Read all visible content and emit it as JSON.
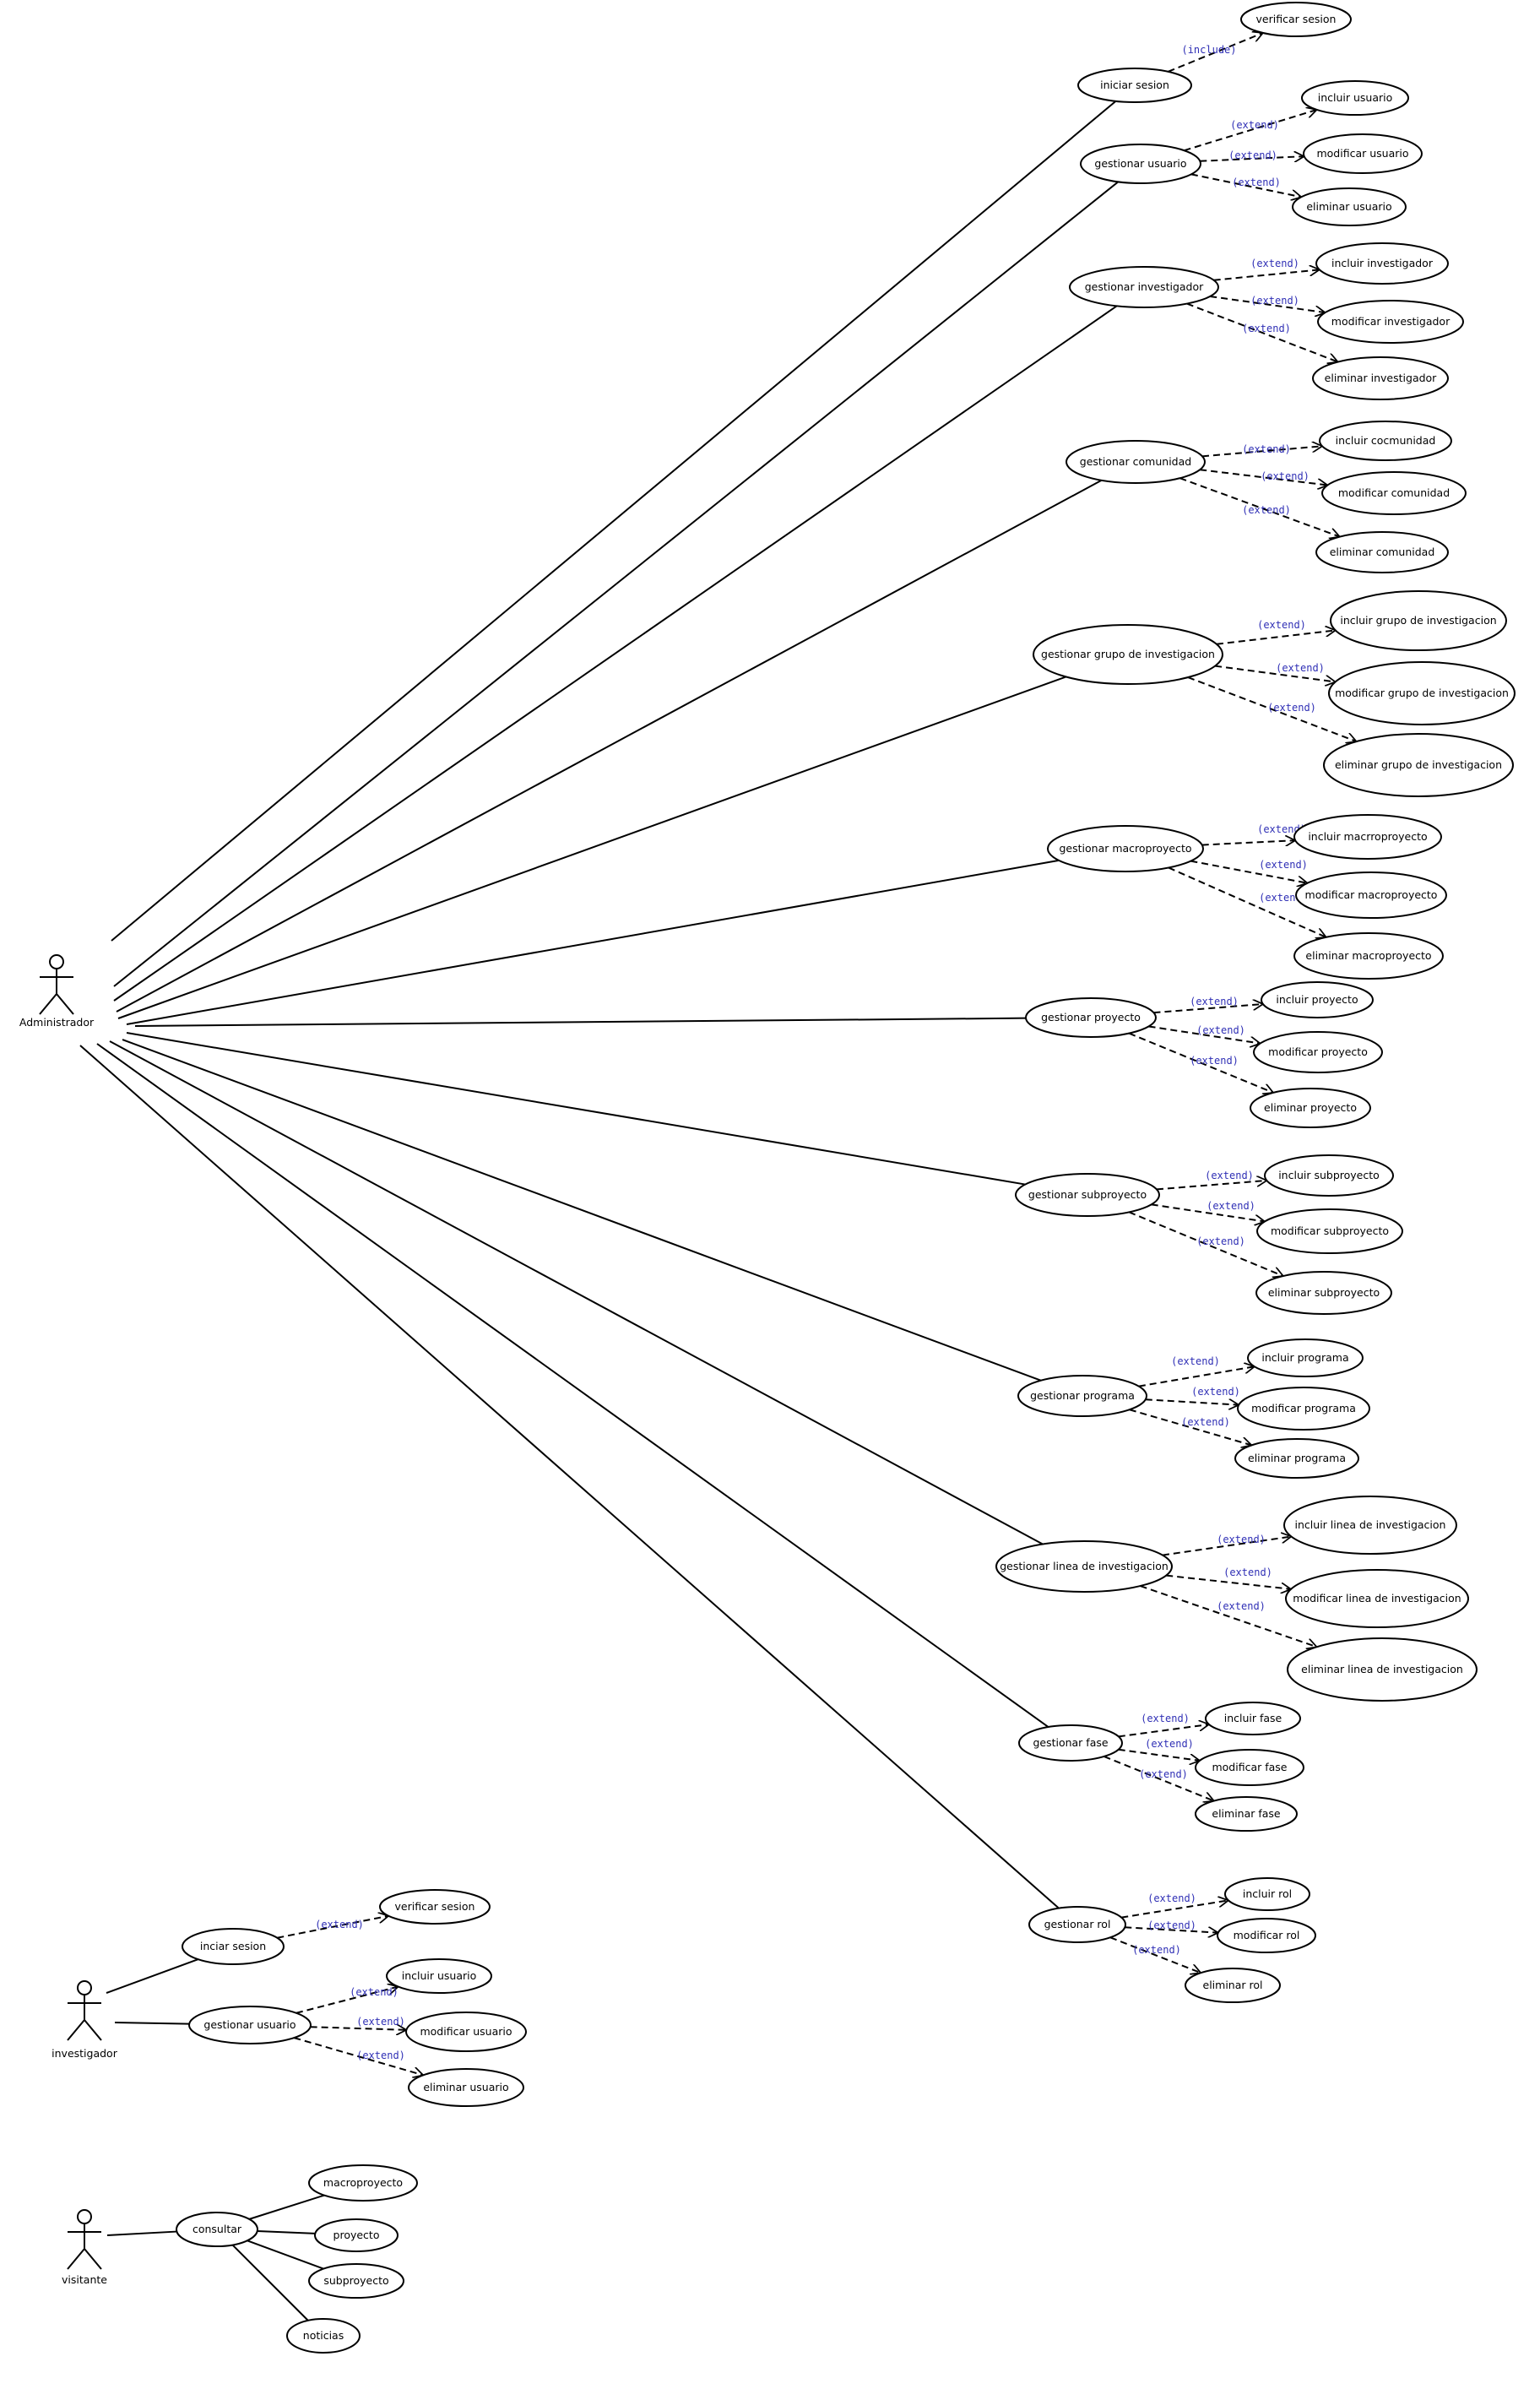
{
  "diagram": {
    "actors": [
      {
        "id": "administrador",
        "label": "Administrador"
      },
      {
        "id": "investigador",
        "label": "investigador"
      },
      {
        "id": "visitante",
        "label": "visitante"
      }
    ],
    "use_cases": [
      {
        "id": "iniciar_sesion",
        "label": "iniciar sesion"
      },
      {
        "id": "verificar_sesion",
        "label": "verificar sesion"
      },
      {
        "id": "gestionar_usuario",
        "label": "gestionar usuario"
      },
      {
        "id": "incluir_usuario",
        "label": "incluir usuario"
      },
      {
        "id": "modificar_usuario",
        "label": "modificar usuario"
      },
      {
        "id": "eliminar_usuario",
        "label": "eliminar usuario"
      },
      {
        "id": "gestionar_investigador",
        "label": "gestionar investigador"
      },
      {
        "id": "incluir_investigador",
        "label": "incluir investigador"
      },
      {
        "id": "modificar_investigador",
        "label": "modificar investigador"
      },
      {
        "id": "eliminar_investigador",
        "label": "eliminar investigador"
      },
      {
        "id": "gestionar_comunidad",
        "label": "gestionar comunidad"
      },
      {
        "id": "incluir_comunidad",
        "label": "incluir cocmunidad"
      },
      {
        "id": "modificar_comunidad",
        "label": "modificar comunidad"
      },
      {
        "id": "eliminar_comunidad",
        "label": "eliminar comunidad"
      },
      {
        "id": "gestionar_grupo",
        "label": "gestionar grupo de investigacion"
      },
      {
        "id": "incluir_grupo",
        "label": "incluir grupo de investigacion"
      },
      {
        "id": "modificar_grupo",
        "label": "modificar grupo de investigacion"
      },
      {
        "id": "eliminar_grupo",
        "label": "eliminar grupo de investigacion"
      },
      {
        "id": "gestionar_macroproyecto",
        "label": "gestionar macroproyecto"
      },
      {
        "id": "incluir_macroproyecto",
        "label": "incluir macrroproyecto"
      },
      {
        "id": "modificar_macroproyecto",
        "label": "modificar macroproyecto"
      },
      {
        "id": "eliminar_macroproyecto",
        "label": "eliminar macroproyecto"
      },
      {
        "id": "gestionar_proyecto",
        "label": "gestionar proyecto"
      },
      {
        "id": "incluir_proyecto",
        "label": "incluir proyecto"
      },
      {
        "id": "modificar_proyecto",
        "label": "modificar proyecto"
      },
      {
        "id": "eliminar_proyecto",
        "label": "eliminar proyecto"
      },
      {
        "id": "gestionar_subproyecto",
        "label": "gestionar subproyecto"
      },
      {
        "id": "incluir_subproyecto",
        "label": "incluir subproyecto"
      },
      {
        "id": "modificar_subproyecto",
        "label": "modificar subproyecto"
      },
      {
        "id": "eliminar_subproyecto",
        "label": "eliminar subproyecto"
      },
      {
        "id": "gestionar_programa",
        "label": "gestionar programa"
      },
      {
        "id": "incluir_programa",
        "label": "incluir programa"
      },
      {
        "id": "modificar_programa",
        "label": "modificar programa"
      },
      {
        "id": "eliminar_programa",
        "label": "eliminar programa"
      },
      {
        "id": "gestionar_linea",
        "label": "gestionar linea de investigacion"
      },
      {
        "id": "incluir_linea",
        "label": "incluir linea de investigacion"
      },
      {
        "id": "modificar_linea",
        "label": "modificar linea de investigacion"
      },
      {
        "id": "eliminar_linea",
        "label": "eliminar linea de investigacion"
      },
      {
        "id": "gestionar_fase",
        "label": "gestionar fase"
      },
      {
        "id": "incluir_fase",
        "label": "incluir fase"
      },
      {
        "id": "modificar_fase",
        "label": "modificar fase"
      },
      {
        "id": "eliminar_fase",
        "label": "eliminar fase"
      },
      {
        "id": "gestionar_rol",
        "label": "gestionar rol"
      },
      {
        "id": "incluir_rol",
        "label": "incluir rol"
      },
      {
        "id": "modificar_rol",
        "label": "modificar rol"
      },
      {
        "id": "eliminar_rol",
        "label": "eliminar rol"
      },
      {
        "id": "inv_inciar_sesion",
        "label": "inciar sesion"
      },
      {
        "id": "inv_verificar_sesion",
        "label": "verificar sesion"
      },
      {
        "id": "inv_gestionar_usuario",
        "label": "gestionar usuario"
      },
      {
        "id": "inv_incluir_usuario",
        "label": "incluir usuario"
      },
      {
        "id": "inv_modificar_usuario",
        "label": "modificar usuario"
      },
      {
        "id": "inv_eliminar_usuario",
        "label": "eliminar usuario"
      },
      {
        "id": "consultar",
        "label": "consultar"
      },
      {
        "id": "c_macroproyecto",
        "label": "macroproyecto"
      },
      {
        "id": "c_proyecto",
        "label": "proyecto"
      },
      {
        "id": "c_subproyecto",
        "label": "subproyecto"
      },
      {
        "id": "c_noticias",
        "label": "noticias"
      }
    ],
    "associations": [
      [
        "administrador",
        "iniciar_sesion"
      ],
      [
        "administrador",
        "gestionar_usuario"
      ],
      [
        "administrador",
        "gestionar_investigador"
      ],
      [
        "administrador",
        "gestionar_comunidad"
      ],
      [
        "administrador",
        "gestionar_grupo"
      ],
      [
        "administrador",
        "gestionar_macroproyecto"
      ],
      [
        "administrador",
        "gestionar_proyecto"
      ],
      [
        "administrador",
        "gestionar_subproyecto"
      ],
      [
        "administrador",
        "gestionar_programa"
      ],
      [
        "administrador",
        "gestionar_linea"
      ],
      [
        "administrador",
        "gestionar_fase"
      ],
      [
        "administrador",
        "gestionar_rol"
      ],
      [
        "investigador",
        "inv_inciar_sesion"
      ],
      [
        "investigador",
        "inv_gestionar_usuario"
      ],
      [
        "visitante",
        "consultar"
      ],
      [
        "consultar",
        "c_macroproyecto"
      ],
      [
        "consultar",
        "c_proyecto"
      ],
      [
        "consultar",
        "c_subproyecto"
      ],
      [
        "consultar",
        "c_noticias"
      ]
    ],
    "dependencies": [
      {
        "from": "iniciar_sesion",
        "to": "verificar_sesion",
        "label": "(include)"
      },
      {
        "from": "gestionar_usuario",
        "to": "incluir_usuario",
        "label": "(extend)"
      },
      {
        "from": "gestionar_usuario",
        "to": "modificar_usuario",
        "label": "(extend)"
      },
      {
        "from": "gestionar_usuario",
        "to": "eliminar_usuario",
        "label": "(extend)"
      },
      {
        "from": "gestionar_investigador",
        "to": "incluir_investigador",
        "label": "(extend)"
      },
      {
        "from": "gestionar_investigador",
        "to": "modificar_investigador",
        "label": "(extend)"
      },
      {
        "from": "gestionar_investigador",
        "to": "eliminar_investigador",
        "label": "(extend)"
      },
      {
        "from": "gestionar_comunidad",
        "to": "incluir_comunidad",
        "label": "(extend)"
      },
      {
        "from": "gestionar_comunidad",
        "to": "modificar_comunidad",
        "label": "(extend)"
      },
      {
        "from": "gestionar_comunidad",
        "to": "eliminar_comunidad",
        "label": "(extend)"
      },
      {
        "from": "gestionar_grupo",
        "to": "incluir_grupo",
        "label": "(extend)"
      },
      {
        "from": "gestionar_grupo",
        "to": "modificar_grupo",
        "label": "(extend)"
      },
      {
        "from": "gestionar_grupo",
        "to": "eliminar_grupo",
        "label": "(extend)"
      },
      {
        "from": "gestionar_macroproyecto",
        "to": "incluir_macroproyecto",
        "label": "(extend)"
      },
      {
        "from": "gestionar_macroproyecto",
        "to": "modificar_macroproyecto",
        "label": "(extend)"
      },
      {
        "from": "gestionar_macroproyecto",
        "to": "eliminar_macroproyecto",
        "label": "(extend)"
      },
      {
        "from": "gestionar_proyecto",
        "to": "incluir_proyecto",
        "label": "(extend)"
      },
      {
        "from": "gestionar_proyecto",
        "to": "modificar_proyecto",
        "label": "(extend)"
      },
      {
        "from": "gestionar_proyecto",
        "to": "eliminar_proyecto",
        "label": "(extend)"
      },
      {
        "from": "gestionar_subproyecto",
        "to": "incluir_subproyecto",
        "label": "(extend)"
      },
      {
        "from": "gestionar_subproyecto",
        "to": "modificar_subproyecto",
        "label": "(extend)"
      },
      {
        "from": "gestionar_subproyecto",
        "to": "eliminar_subproyecto",
        "label": "(extend)"
      },
      {
        "from": "gestionar_programa",
        "to": "incluir_programa",
        "label": "(extend)"
      },
      {
        "from": "gestionar_programa",
        "to": "modificar_programa",
        "label": "(extend)"
      },
      {
        "from": "gestionar_programa",
        "to": "eliminar_programa",
        "label": "(extend)"
      },
      {
        "from": "gestionar_linea",
        "to": "incluir_linea",
        "label": "(extend)"
      },
      {
        "from": "gestionar_linea",
        "to": "modificar_linea",
        "label": "(extend)"
      },
      {
        "from": "gestionar_linea",
        "to": "eliminar_linea",
        "label": "(extend)"
      },
      {
        "from": "gestionar_fase",
        "to": "incluir_fase",
        "label": "(extend)"
      },
      {
        "from": "gestionar_fase",
        "to": "modificar_fase",
        "label": "(extend)"
      },
      {
        "from": "gestionar_fase",
        "to": "eliminar_fase",
        "label": "(extend)"
      },
      {
        "from": "gestionar_rol",
        "to": "incluir_rol",
        "label": "(extend)"
      },
      {
        "from": "gestionar_rol",
        "to": "modificar_rol",
        "label": "(extend)"
      },
      {
        "from": "gestionar_rol",
        "to": "eliminar_rol",
        "label": "(extend)"
      },
      {
        "from": "inv_inciar_sesion",
        "to": "inv_verificar_sesion",
        "label": "(extend)"
      },
      {
        "from": "inv_gestionar_usuario",
        "to": "inv_incluir_usuario",
        "label": "(extend)"
      },
      {
        "from": "inv_gestionar_usuario",
        "to": "inv_modificar_usuario",
        "label": "(extend)"
      },
      {
        "from": "inv_gestionar_usuario",
        "to": "inv_eliminar_usuario",
        "label": "(extend)"
      }
    ],
    "colors": {
      "line": "#000000",
      "stereotype": "#2f2fb5",
      "background": "#ffffff"
    }
  }
}
